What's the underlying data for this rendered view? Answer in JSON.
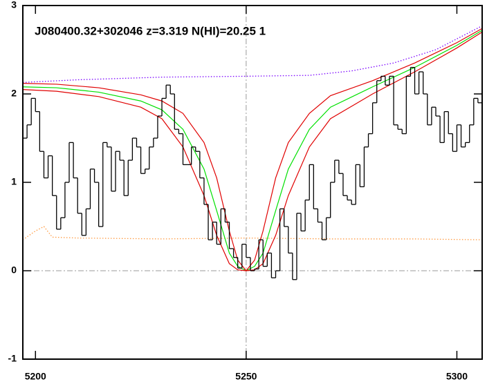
{
  "chart_data": {
    "type": "line",
    "title": "J080400.32+302046 z=3.319 N(HI)=20.25 1",
    "xlim": [
      5197,
      5306
    ],
    "ylim": [
      -1,
      3
    ],
    "xticks": [
      5200,
      5250,
      5300
    ],
    "yticks": [
      -1,
      0,
      1,
      2,
      3
    ],
    "hlines": [
      0
    ],
    "vlines": [
      5250
    ],
    "series": [
      {
        "color": "#000000",
        "style": "step",
        "x": [
          5197.5,
          5198.5,
          5199.5,
          5200.5,
          5201.5,
          5202.5,
          5203.5,
          5204.5,
          5205.5,
          5206.5,
          5207.5,
          5208.5,
          5209.5,
          5210.5,
          5211.5,
          5212.5,
          5213.5,
          5214.5,
          5215.5,
          5216.5,
          5217.5,
          5218.5,
          5219.5,
          5220.5,
          5221.5,
          5222.5,
          5223.5,
          5224.5,
          5225.5,
          5226.5,
          5227.5,
          5228.5,
          5229.5,
          5230.5,
          5231.5,
          5232.5,
          5233.5,
          5234.5,
          5235.5,
          5236.5,
          5237.5,
          5238.5,
          5239.5,
          5240.5,
          5241.5,
          5242.5,
          5243.5,
          5244.5,
          5245.5,
          5246.5,
          5247.5,
          5248.5,
          5249.5,
          5250.5,
          5251.5,
          5252.5,
          5253.5,
          5254.5,
          5255.5,
          5256.5,
          5257.5,
          5258.5,
          5259.5,
          5260.5,
          5261.5,
          5262.5,
          5263.5,
          5264.5,
          5265.5,
          5266.5,
          5267.5,
          5268.5,
          5269.5,
          5270.5,
          5271.5,
          5272.5,
          5273.5,
          5274.5,
          5275.5,
          5276.5,
          5277.5,
          5278.5,
          5279.5,
          5280.5,
          5281.5,
          5282.5,
          5283.5,
          5284.5,
          5285.5,
          5286.5,
          5287.5,
          5288.5,
          5289.5,
          5290.5,
          5291.5,
          5292.5,
          5293.5,
          5294.5,
          5295.5,
          5296.5,
          5297.5,
          5298.5,
          5299.5,
          5300.5,
          5301.5,
          5302.5,
          5303.5,
          5304.5,
          5305.5
        ],
        "values": [
          1.5,
          1.65,
          1.95,
          1.8,
          1.35,
          1.05,
          1.3,
          0.85,
          0.47,
          0.6,
          1.0,
          1.45,
          1.05,
          0.65,
          0.4,
          0.7,
          1.15,
          1.0,
          0.5,
          1.45,
          1.4,
          0.9,
          1.35,
          1.25,
          0.85,
          1.25,
          1.5,
          1.4,
          1.1,
          1.15,
          1.4,
          1.5,
          1.75,
          1.95,
          2.1,
          2.0,
          1.6,
          1.55,
          1.2,
          1.2,
          1.4,
          1.35,
          1.05,
          0.75,
          0.35,
          0.55,
          0.3,
          0.7,
          0.55,
          0.25,
          0.15,
          0.03,
          0.3,
          0.15,
          0.0,
          0.02,
          0.35,
          0.05,
          0.2,
          -0.08,
          0.0,
          0.7,
          0.5,
          0.2,
          -0.1,
          0.65,
          0.45,
          0.8,
          1.2,
          0.7,
          0.55,
          0.35,
          0.6,
          1.0,
          1.25,
          1.1,
          0.85,
          0.8,
          0.75,
          1.2,
          0.95,
          1.4,
          1.55,
          1.9,
          2.15,
          2.2,
          2.1,
          2.2,
          1.65,
          1.6,
          1.55,
          2.2,
          2.3,
          2.0,
          2.25,
          2.0,
          1.65,
          1.85,
          1.75,
          1.45,
          1.8,
          1.55,
          1.35,
          1.65,
          1.4,
          1.45,
          1.65,
          1.95,
          1.9
        ]
      },
      {
        "color": "#7a00ff",
        "style": "dotted",
        "x": [
          5197,
          5210,
          5230,
          5250,
          5265,
          5275,
          5285,
          5295,
          5306
        ],
        "values": [
          2.13,
          2.16,
          2.19,
          2.2,
          2.21,
          2.26,
          2.35,
          2.5,
          2.77
        ]
      },
      {
        "color": "#ff9a40",
        "style": "dotted",
        "x": [
          5197,
          5200,
          5202,
          5204,
          5210,
          5230,
          5250,
          5270,
          5290,
          5306
        ],
        "values": [
          0.35,
          0.45,
          0.5,
          0.38,
          0.37,
          0.36,
          0.37,
          0.36,
          0.36,
          0.35
        ]
      },
      {
        "color": "#00e000",
        "style": "solid",
        "x": [
          5197,
          5205,
          5215,
          5225,
          5230,
          5235,
          5240,
          5243,
          5246,
          5248,
          5250,
          5252,
          5254,
          5257,
          5260,
          5265,
          5270,
          5280,
          5290,
          5300,
          5306
        ],
        "values": [
          2.08,
          2.07,
          2.02,
          1.92,
          1.82,
          1.6,
          1.15,
          0.68,
          0.2,
          0.05,
          0.0,
          0.05,
          0.2,
          0.68,
          1.15,
          1.6,
          1.85,
          2.08,
          2.3,
          2.55,
          2.72
        ]
      },
      {
        "color": "#e00000",
        "style": "solid",
        "x": [
          5197,
          5205,
          5215,
          5225,
          5230,
          5235,
          5240,
          5243,
          5246,
          5248,
          5250,
          5252,
          5254,
          5257,
          5260,
          5265,
          5270,
          5280,
          5290,
          5300,
          5306
        ],
        "values": [
          2.12,
          2.11,
          2.07,
          1.99,
          1.92,
          1.78,
          1.45,
          1.05,
          0.45,
          0.12,
          0.0,
          0.12,
          0.45,
          1.05,
          1.45,
          1.78,
          1.98,
          2.15,
          2.35,
          2.58,
          2.74
        ]
      },
      {
        "color": "#e00000",
        "style": "solid",
        "x": [
          5197,
          5205,
          5215,
          5225,
          5230,
          5235,
          5240,
          5243,
          5246,
          5248,
          5250,
          5252,
          5254,
          5257,
          5260,
          5265,
          5270,
          5280,
          5290,
          5300,
          5306
        ],
        "values": [
          2.05,
          2.03,
          1.97,
          1.85,
          1.72,
          1.4,
          0.85,
          0.4,
          0.08,
          0.01,
          0.0,
          0.01,
          0.08,
          0.4,
          0.85,
          1.4,
          1.72,
          2.0,
          2.25,
          2.52,
          2.7
        ]
      }
    ]
  }
}
